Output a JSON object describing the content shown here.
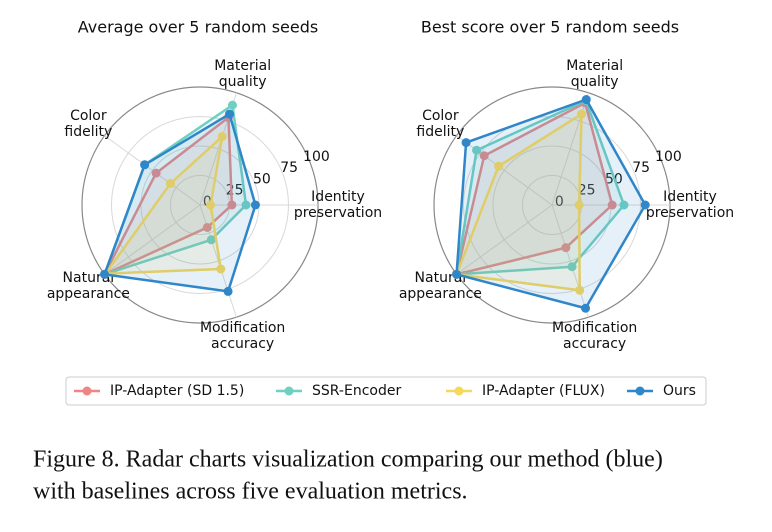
{
  "chart_data": [
    {
      "type": "radar",
      "title": "Average over 5 random seeds",
      "categories": [
        [
          "Identity",
          "preservation"
        ],
        [
          "Material",
          "quality"
        ],
        [
          "Color",
          "fidelity"
        ],
        [
          "Natural",
          "appearance"
        ],
        [
          "Modification",
          "accuracy"
        ]
      ],
      "rlim": [
        0,
        100
      ],
      "rticks": [
        0,
        25,
        50,
        75,
        100
      ],
      "series": [
        {
          "name": "IP-Adapter (SD 1.5)",
          "color": "#ef8585",
          "values": [
            27,
            78,
            46,
            100,
            20
          ]
        },
        {
          "name": "SSR-Encoder",
          "color": "#6fd0c2",
          "values": [
            39,
            89,
            58,
            100,
            31
          ]
        },
        {
          "name": "IP-Adapter (FLUX)",
          "color": "#f6d85c",
          "values": [
            9,
            61,
            31,
            99,
            57
          ]
        },
        {
          "name": "Ours",
          "color": "#2f86c9",
          "values": [
            47,
            81,
            58,
            100,
            77
          ]
        }
      ]
    },
    {
      "type": "radar",
      "title": "Best score over 5 random seeds",
      "categories": [
        [
          "Identity",
          "preservation"
        ],
        [
          "Material",
          "quality"
        ],
        [
          "Color",
          "fidelity"
        ],
        [
          "Natural",
          "appearance"
        ],
        [
          "Modification",
          "accuracy"
        ]
      ],
      "rlim": [
        0,
        100
      ],
      "rticks": [
        0,
        25,
        50,
        75,
        100
      ],
      "series": [
        {
          "name": "IP-Adapter (SD 1.5)",
          "color": "#ef8585",
          "values": [
            51,
            91,
            71,
            100,
            38
          ]
        },
        {
          "name": "SSR-Encoder",
          "color": "#6fd0c2",
          "values": [
            61,
            93,
            79,
            100,
            55
          ]
        },
        {
          "name": "IP-Adapter (FLUX)",
          "color": "#f6d85c",
          "values": [
            23,
            81,
            56,
            100,
            76
          ]
        },
        {
          "name": "Ours",
          "color": "#2f86c9",
          "values": [
            79,
            94,
            90,
            100,
            92
          ]
        }
      ]
    }
  ],
  "caption": [
    "Figure 8. Radar charts visualization comparing our method (blue)",
    "with baselines across five evaluation metrics."
  ]
}
